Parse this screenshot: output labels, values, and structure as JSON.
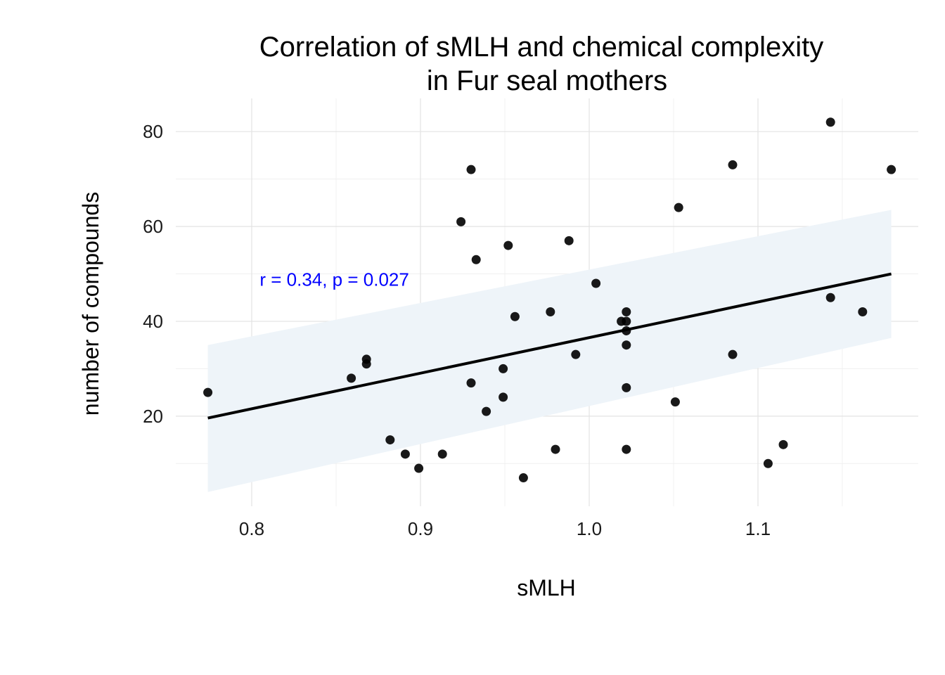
{
  "chart_data": {
    "type": "scatter",
    "title": "Correlation of sMLH and chemical complexity\nin Fur seal mothers",
    "title_lines": [
      "Correlation of sMLH and chemical complexity",
      "in Fur seal mothers"
    ],
    "xlabel": "sMLH",
    "ylabel": "number of compounds",
    "xlim": [
      0.755,
      1.195
    ],
    "ylim": [
      1,
      87
    ],
    "x_ticks": [
      0.8,
      0.9,
      1.0,
      1.1
    ],
    "x_tick_labels": [
      "0.8",
      "0.9",
      "1.0",
      "1.1"
    ],
    "y_ticks": [
      20,
      40,
      60,
      80
    ],
    "y_tick_labels": [
      "20",
      "40",
      "60",
      "80"
    ],
    "grid": true,
    "annotation": {
      "text": "r = 0.34, p = 0.027",
      "x": 0.849,
      "y": 49,
      "color": "#0000ff"
    },
    "points": [
      {
        "x": 0.774,
        "y": 25
      },
      {
        "x": 0.859,
        "y": 28
      },
      {
        "x": 0.868,
        "y": 32
      },
      {
        "x": 0.868,
        "y": 31
      },
      {
        "x": 0.882,
        "y": 15
      },
      {
        "x": 0.891,
        "y": 12
      },
      {
        "x": 0.899,
        "y": 9
      },
      {
        "x": 0.913,
        "y": 12
      },
      {
        "x": 0.924,
        "y": 61
      },
      {
        "x": 0.93,
        "y": 72
      },
      {
        "x": 0.933,
        "y": 53
      },
      {
        "x": 0.93,
        "y": 27
      },
      {
        "x": 0.939,
        "y": 21
      },
      {
        "x": 0.949,
        "y": 30
      },
      {
        "x": 0.949,
        "y": 24
      },
      {
        "x": 0.952,
        "y": 56
      },
      {
        "x": 0.956,
        "y": 41
      },
      {
        "x": 0.961,
        "y": 7
      },
      {
        "x": 0.977,
        "y": 42
      },
      {
        "x": 0.98,
        "y": 13
      },
      {
        "x": 0.988,
        "y": 57
      },
      {
        "x": 0.992,
        "y": 33
      },
      {
        "x": 1.004,
        "y": 48
      },
      {
        "x": 1.019,
        "y": 40
      },
      {
        "x": 1.022,
        "y": 42
      },
      {
        "x": 1.022,
        "y": 40
      },
      {
        "x": 1.022,
        "y": 38
      },
      {
        "x": 1.022,
        "y": 35
      },
      {
        "x": 1.022,
        "y": 26
      },
      {
        "x": 1.022,
        "y": 13
      },
      {
        "x": 1.051,
        "y": 23
      },
      {
        "x": 1.053,
        "y": 64
      },
      {
        "x": 1.085,
        "y": 73
      },
      {
        "x": 1.085,
        "y": 33
      },
      {
        "x": 1.106,
        "y": 10
      },
      {
        "x": 1.115,
        "y": 14
      },
      {
        "x": 1.143,
        "y": 82
      },
      {
        "x": 1.143,
        "y": 45
      },
      {
        "x": 1.162,
        "y": 42
      },
      {
        "x": 1.179,
        "y": 72
      }
    ],
    "fit": {
      "type": "linear",
      "x": [
        0.774,
        1.179
      ],
      "y": [
        19.6,
        50.0
      ],
      "ci_lower": [
        4,
        36.5
      ],
      "ci_upper": [
        35,
        63.5
      ],
      "line_color": "#000000",
      "ci_color": "#eef4f9"
    },
    "point_color": "#000000"
  }
}
